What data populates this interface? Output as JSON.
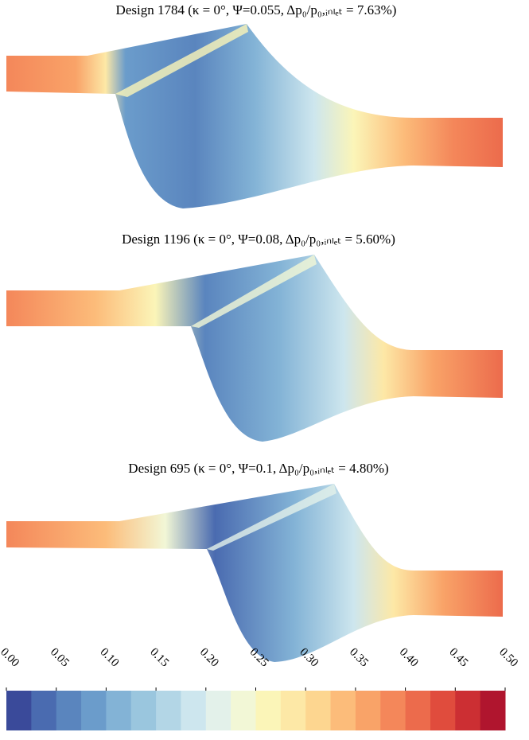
{
  "chart_data": {
    "type": "contour",
    "panels": [
      {
        "title": "Design 1784 (κ = 0°, Ψ=0.055, Δp₀/p₀,ᵢₙₗₑₜ = 7.63%)"
      },
      {
        "title": "Design 1196 (κ = 0°, Ψ=0.08, Δp₀/p₀,ᵢₙₗₑₜ = 5.60%)"
      },
      {
        "title": "Design 695 (κ = 0°, Ψ=0.1, Δp₀/p₀,ᵢₙₗₑₜ = 4.80%)"
      }
    ],
    "colorbar": {
      "lim": [
        0,
        0.5
      ],
      "ticks": [
        {
          "value": 0,
          "label": "0.00"
        },
        {
          "value": 0.05,
          "label": "0.05"
        },
        {
          "value": 0.1,
          "label": "0.10"
        },
        {
          "value": 0.15,
          "label": "0.15"
        },
        {
          "value": 0.2,
          "label": "0.20"
        },
        {
          "value": 0.25,
          "label": "0.25"
        },
        {
          "value": 0.3,
          "label": "0.30"
        },
        {
          "value": 0.35,
          "label": "0.35"
        },
        {
          "value": 0.4,
          "label": "0.40"
        },
        {
          "value": 0.45,
          "label": "0.45"
        },
        {
          "value": 0.5,
          "label": "0.50"
        }
      ],
      "colors": [
        "#3a4a9a",
        "#4a6bb0",
        "#5a85be",
        "#6b9ccb",
        "#83b3d6",
        "#9ac6de",
        "#b3d6e6",
        "#cde6ee",
        "#e3f1ea",
        "#f2f7d6",
        "#fbf5b8",
        "#fde8a6",
        "#fdd690",
        "#fcbc7a",
        "#f9a368",
        "#f4875a",
        "#ec6b4c",
        "#e04c3d",
        "#cc2f33",
        "#b0152e"
      ]
    }
  }
}
